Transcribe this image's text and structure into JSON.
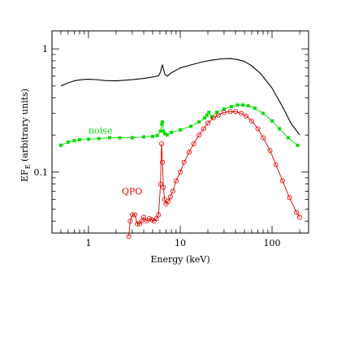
{
  "chart_data": {
    "type": "line",
    "xlabel": "Energy (keV)",
    "ylabel": "EF_E (arbitrary units)",
    "ylabel_main": "EF",
    "ylabel_sub": "E",
    "ylabel_rest": " (arbitrary units)",
    "xscale": "log",
    "yscale": "log",
    "xlim": [
      0.4,
      250
    ],
    "ylim": [
      0.032,
      1.4
    ],
    "x_ticks": [
      1,
      10,
      100
    ],
    "x_tick_labels": [
      "1",
      "10",
      "100"
    ],
    "y_ticks": [
      0.1,
      1
    ],
    "y_tick_labels": [
      "0.1",
      "1"
    ],
    "colors": {
      "total": "#000000",
      "noise": "#00dd00",
      "qpo": "#dd0000"
    },
    "annotations": [
      {
        "text": "noise",
        "series": "noise",
        "x": 1.0,
        "y": 0.205
      },
      {
        "text": "QPO",
        "series": "qpo",
        "x": 2.3,
        "y": 0.066
      }
    ],
    "series": [
      {
        "key": "total",
        "x": [
          0.5,
          0.6,
          0.7,
          0.8,
          0.9,
          1.0,
          1.2,
          1.5,
          2.0,
          3.0,
          4.0,
          5.0,
          5.8,
          6.1,
          6.3,
          6.4,
          6.55,
          6.8,
          7.2,
          8.0,
          10.0,
          13.0,
          17.0,
          22.0,
          28.0,
          35.0,
          42.0,
          50.0,
          60.0,
          75.0,
          100.0,
          130.0,
          160.0,
          200.0
        ],
        "y": [
          0.5,
          0.53,
          0.55,
          0.56,
          0.565,
          0.567,
          0.563,
          0.553,
          0.55,
          0.562,
          0.575,
          0.59,
          0.605,
          0.65,
          0.72,
          0.74,
          0.69,
          0.62,
          0.6,
          0.64,
          0.7,
          0.74,
          0.78,
          0.81,
          0.83,
          0.835,
          0.82,
          0.79,
          0.73,
          0.63,
          0.48,
          0.34,
          0.25,
          0.2
        ]
      },
      {
        "key": "noise",
        "x": [
          0.5,
          0.6,
          0.7,
          0.8,
          1.0,
          1.3,
          1.7,
          2.2,
          3.0,
          4.0,
          5.0,
          5.6,
          6.1,
          6.3,
          6.4,
          6.55,
          6.8,
          7.2,
          8.0,
          10.0,
          13.0,
          16.0,
          18.5,
          19.5,
          20.5,
          22.0,
          25.0,
          30.0,
          36.0,
          42.0,
          48.0,
          55.0,
          65.0,
          80.0,
          100.0,
          120.0,
          150.0,
          190.0
        ],
        "y": [
          0.165,
          0.175,
          0.18,
          0.183,
          0.185,
          0.187,
          0.19,
          0.19,
          0.19,
          0.193,
          0.195,
          0.198,
          0.215,
          0.245,
          0.255,
          0.215,
          0.205,
          0.2,
          0.21,
          0.22,
          0.235,
          0.255,
          0.275,
          0.29,
          0.305,
          0.28,
          0.305,
          0.325,
          0.34,
          0.35,
          0.35,
          0.345,
          0.33,
          0.3,
          0.26,
          0.225,
          0.19,
          0.165
        ]
      },
      {
        "key": "qpo",
        "x": [
          2.75,
          2.85,
          3.0,
          3.2,
          3.4,
          3.6,
          3.8,
          4.0,
          4.3,
          4.6,
          4.9,
          5.2,
          5.5,
          5.8,
          6.1,
          6.25,
          6.4,
          6.55,
          6.75,
          7.0,
          7.4,
          7.8,
          8.3,
          9.0,
          10.0,
          11.0,
          12.5,
          14.0,
          16.0,
          18.0,
          20.0,
          23.0,
          26.0,
          30.0,
          35.0,
          40.0,
          46.0,
          52.0,
          60.0,
          70.0,
          80.0,
          95.0,
          110.0,
          130.0,
          155.0,
          185.0,
          200.0
        ],
        "y": [
          0.03,
          0.04,
          0.045,
          0.045,
          0.038,
          0.038,
          0.04,
          0.043,
          0.04,
          0.042,
          0.041,
          0.04,
          0.042,
          0.045,
          0.08,
          0.17,
          0.12,
          0.075,
          0.06,
          0.055,
          0.058,
          0.063,
          0.07,
          0.085,
          0.1,
          0.12,
          0.145,
          0.17,
          0.2,
          0.225,
          0.25,
          0.275,
          0.29,
          0.305,
          0.31,
          0.31,
          0.3,
          0.285,
          0.26,
          0.225,
          0.19,
          0.15,
          0.115,
          0.085,
          0.062,
          0.047,
          0.043
        ]
      }
    ]
  }
}
